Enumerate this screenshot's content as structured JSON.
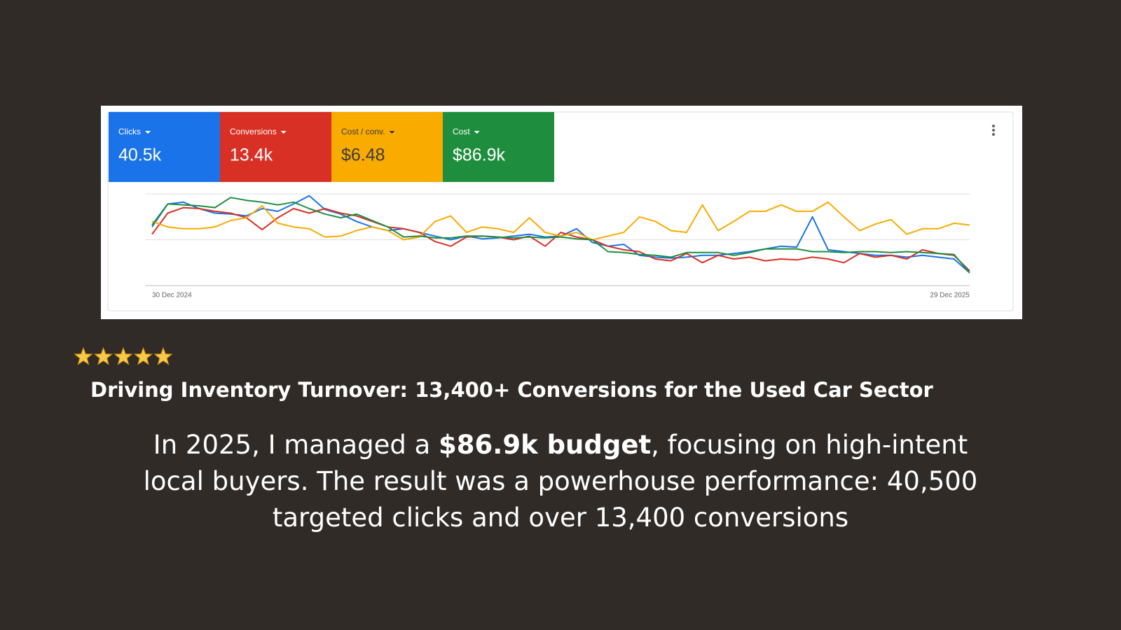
{
  "chart_data": {
    "type": "line",
    "categories": [
      "30 Dec 2024",
      null,
      null,
      null,
      null,
      null,
      null,
      null,
      null,
      null,
      null,
      null,
      null,
      null,
      null,
      null,
      null,
      null,
      null,
      null,
      null,
      null,
      null,
      null,
      null,
      null,
      null,
      null,
      null,
      null,
      null,
      null,
      null,
      null,
      null,
      null,
      null,
      null,
      null,
      null,
      null,
      null,
      null,
      null,
      null,
      null,
      null,
      null,
      null,
      null,
      null,
      null,
      "29 Dec 2025"
    ],
    "ylim": [
      0,
      100
    ],
    "yticks": [
      0,
      50,
      100
    ],
    "grid": true,
    "series": [
      {
        "name": "Clicks",
        "total": "40.5k",
        "color": "#1a73e8",
        "values": [
          64,
          89,
          91,
          84,
          79,
          78,
          76,
          84,
          81,
          89,
          98,
          83,
          78,
          70,
          64,
          60,
          62,
          58,
          54,
          50,
          54,
          51,
          52,
          54,
          56,
          53,
          54,
          62,
          47,
          43,
          45,
          33,
          31,
          30,
          31,
          33,
          33,
          35,
          37,
          40,
          43,
          42,
          75,
          39,
          37,
          35,
          33,
          33,
          31,
          33,
          31,
          29,
          14
        ]
      },
      {
        "name": "Conversions",
        "total": "13.4k",
        "color": "#d93025",
        "values": [
          56,
          79,
          85,
          84,
          81,
          79,
          74,
          61,
          74,
          84,
          79,
          84,
          79,
          76,
          70,
          64,
          62,
          58,
          48,
          43,
          53,
          54,
          53,
          50,
          54,
          43,
          58,
          53,
          50,
          43,
          39,
          37,
          29,
          27,
          35,
          25,
          33,
          29,
          31,
          27,
          29,
          28,
          31,
          29,
          25,
          35,
          31,
          33,
          29,
          39,
          35,
          33,
          16
        ]
      },
      {
        "name": "Cost / conv.",
        "total": "$6.48",
        "color": "#f9ab00",
        "values": [
          70,
          64,
          62,
          62,
          64,
          71,
          74,
          87,
          68,
          64,
          62,
          53,
          54,
          60,
          64,
          60,
          50,
          53,
          70,
          76,
          58,
          64,
          62,
          58,
          74,
          58,
          54,
          58,
          50,
          54,
          58,
          75,
          70,
          60,
          58,
          88,
          60,
          70,
          81,
          81,
          88,
          81,
          81,
          91,
          75,
          60,
          67,
          72,
          56,
          62,
          62,
          68,
          66
        ]
      },
      {
        "name": "Cost",
        "total": "$86.9k",
        "color": "#1e8e3e",
        "values": [
          66,
          89,
          88,
          87,
          85,
          96,
          93,
          91,
          88,
          91,
          84,
          78,
          74,
          78,
          71,
          64,
          53,
          54,
          52,
          52,
          54,
          54,
          53,
          52,
          53,
          52,
          53,
          51,
          50,
          37,
          36,
          34,
          33,
          31,
          36,
          36,
          36,
          33,
          36,
          40,
          40,
          40,
          37,
          37,
          36,
          37,
          37,
          36,
          37,
          36,
          35,
          34,
          14
        ]
      }
    ]
  },
  "heading": "Driving Inventory Turnover: 13,400+ Conversions for the Used Car Sector",
  "body": {
    "before": "In 2025, I managed a ",
    "bold": "$86.9k budget",
    "after": ", focusing on high-intent local buyers. The result was a powerhouse performance: 40,500 targeted clicks and over 13,400 conversions"
  }
}
